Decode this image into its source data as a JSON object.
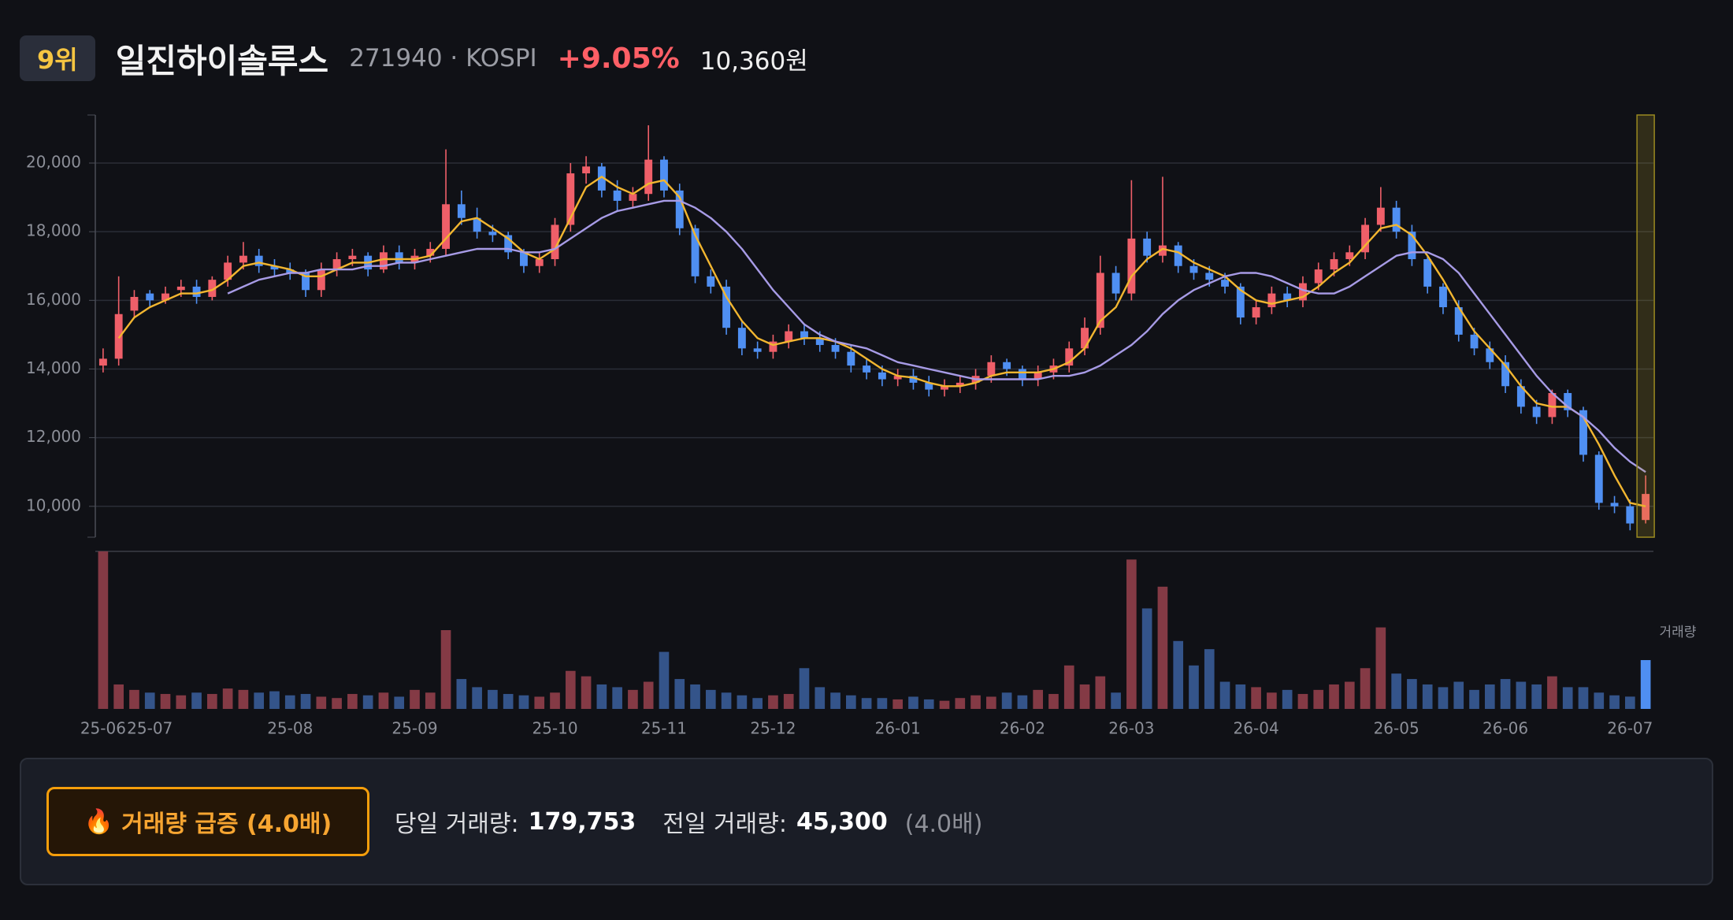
{
  "header": {
    "rank": "9위",
    "name": "일진하이솔루스",
    "code": "271940 · KOSPI",
    "change": "+9.05%",
    "price": "10,360원"
  },
  "chart_data": {
    "type": "candlestick",
    "categories": [
      "25-06",
      null,
      null,
      "25-07",
      null,
      null,
      null,
      null,
      null,
      null,
      null,
      null,
      "25-08",
      null,
      null,
      null,
      null,
      null,
      null,
      null,
      "25-09",
      null,
      null,
      null,
      null,
      null,
      null,
      null,
      null,
      "25-10",
      null,
      null,
      null,
      null,
      null,
      null,
      "25-11",
      null,
      null,
      null,
      null,
      null,
      null,
      "25-12",
      null,
      null,
      null,
      null,
      null,
      null,
      null,
      "26-01",
      null,
      null,
      null,
      null,
      null,
      null,
      null,
      "26-02",
      null,
      null,
      null,
      null,
      null,
      null,
      "26-03",
      null,
      null,
      null,
      null,
      null,
      null,
      null,
      "26-04",
      null,
      null,
      null,
      null,
      null,
      null,
      null,
      null,
      "26-05",
      null,
      null,
      null,
      null,
      null,
      null,
      "26-06",
      null,
      null,
      null,
      null,
      null,
      null,
      null,
      "26-07",
      null
    ],
    "open": [
      14100,
      14300,
      15700,
      16200,
      16000,
      16300,
      16400,
      16100,
      16600,
      17100,
      17300,
      17000,
      16900,
      16800,
      16300,
      16900,
      17200,
      17300,
      16900,
      17400,
      17100,
      17300,
      17500,
      18800,
      18400,
      18000,
      17900,
      17400,
      17000,
      17200,
      18200,
      19700,
      19900,
      19200,
      18900,
      19100,
      20100,
      19200,
      18100,
      16700,
      16400,
      15200,
      14600,
      14500,
      14800,
      15100,
      14900,
      14700,
      14500,
      14100,
      13900,
      13700,
      13800,
      13600,
      13400,
      13500,
      13600,
      13800,
      14200,
      14000,
      13700,
      13900,
      14100,
      14600,
      15200,
      16800,
      16200,
      17800,
      17300,
      17600,
      17000,
      16800,
      16600,
      16400,
      15500,
      15800,
      16200,
      16000,
      16500,
      16900,
      17200,
      17400,
      18200,
      18700,
      18000,
      17200,
      16400,
      15800,
      15000,
      14600,
      14200,
      13500,
      12900,
      12600,
      13300,
      12800,
      11500,
      10100,
      10000,
      9600
    ],
    "high": [
      14600,
      16700,
      16300,
      16300,
      16400,
      16600,
      16600,
      16700,
      17300,
      17700,
      17500,
      17200,
      17100,
      16900,
      17100,
      17400,
      17500,
      17400,
      17600,
      17600,
      17500,
      17700,
      20400,
      19200,
      18700,
      18200,
      18000,
      17500,
      17400,
      18400,
      20000,
      20200,
      20000,
      19500,
      19300,
      21100,
      20200,
      19400,
      18200,
      16900,
      16600,
      15400,
      14800,
      15000,
      15300,
      15300,
      15100,
      14900,
      14700,
      14300,
      14100,
      14000,
      14000,
      13800,
      13700,
      13800,
      14000,
      14400,
      14300,
      14100,
      14100,
      14300,
      14800,
      15500,
      17300,
      17000,
      19500,
      18000,
      19600,
      17700,
      17200,
      17000,
      16800,
      16500,
      16000,
      16400,
      16400,
      16700,
      17100,
      17400,
      17600,
      18400,
      19300,
      18900,
      18200,
      17300,
      16500,
      16000,
      15200,
      14800,
      14400,
      13700,
      13100,
      13400,
      13400,
      12900,
      11600,
      10300,
      10200,
      10900
    ],
    "low": [
      13900,
      14100,
      15500,
      15800,
      15900,
      16100,
      15900,
      16000,
      16400,
      16900,
      16800,
      16700,
      16600,
      16100,
      16100,
      16700,
      17000,
      16700,
      16800,
      16900,
      16900,
      17100,
      17300,
      18200,
      17800,
      17700,
      17200,
      16800,
      16800,
      17000,
      18000,
      19400,
      19000,
      18600,
      18700,
      18900,
      19000,
      17900,
      16500,
      16200,
      15000,
      14400,
      14300,
      14300,
      14600,
      14700,
      14500,
      14300,
      13900,
      13700,
      13500,
      13500,
      13400,
      13200,
      13200,
      13300,
      13400,
      13600,
      13800,
      13500,
      13500,
      13700,
      13900,
      14400,
      15000,
      16000,
      16000,
      17100,
      17100,
      16800,
      16600,
      16400,
      16200,
      15300,
      15300,
      15600,
      15800,
      15800,
      16300,
      16700,
      17000,
      17200,
      18000,
      17800,
      17000,
      16200,
      15600,
      14800,
      14400,
      14000,
      13300,
      12700,
      12400,
      12400,
      12600,
      11300,
      9900,
      9800,
      9300,
      9500
    ],
    "close": [
      14300,
      15600,
      16100,
      16000,
      16200,
      16400,
      16100,
      16600,
      17100,
      17300,
      17000,
      16900,
      16800,
      16300,
      16900,
      17200,
      17300,
      16900,
      17400,
      17100,
      17300,
      17500,
      18800,
      18400,
      18000,
      17900,
      17400,
      17000,
      17200,
      18200,
      19700,
      19900,
      19200,
      18900,
      19100,
      20100,
      19200,
      18100,
      16700,
      16400,
      15200,
      14600,
      14500,
      14800,
      15100,
      14900,
      14700,
      14500,
      14100,
      13900,
      13700,
      13800,
      13600,
      13400,
      13500,
      13600,
      13800,
      14200,
      14000,
      13700,
      13900,
      14100,
      14600,
      15200,
      16800,
      16200,
      17800,
      17300,
      17600,
      17000,
      16800,
      16600,
      16400,
      15500,
      15800,
      16200,
      16000,
      16500,
      16900,
      17200,
      17400,
      18200,
      18700,
      18000,
      17200,
      16400,
      15800,
      15000,
      14600,
      14200,
      13500,
      12900,
      12600,
      13300,
      12800,
      11500,
      10100,
      10000,
      9500,
      10360
    ],
    "volume": [
      580000,
      90000,
      70000,
      60000,
      55000,
      50000,
      60000,
      55000,
      75000,
      70000,
      60000,
      65000,
      50000,
      55000,
      45000,
      40000,
      55000,
      50000,
      60000,
      45000,
      70000,
      60000,
      290000,
      110000,
      80000,
      70000,
      55000,
      50000,
      45000,
      60000,
      140000,
      120000,
      90000,
      80000,
      70000,
      100000,
      210000,
      110000,
      90000,
      70000,
      60000,
      50000,
      40000,
      50000,
      55000,
      150000,
      80000,
      60000,
      50000,
      40000,
      40000,
      35000,
      45000,
      35000,
      30000,
      40000,
      50000,
      45000,
      60000,
      50000,
      70000,
      55000,
      160000,
      90000,
      120000,
      60000,
      550000,
      370000,
      450000,
      250000,
      160000,
      220000,
      100000,
      90000,
      80000,
      60000,
      70000,
      55000,
      70000,
      90000,
      100000,
      150000,
      300000,
      130000,
      110000,
      90000,
      80000,
      100000,
      70000,
      90000,
      110000,
      100000,
      90000,
      120000,
      80000,
      80000,
      60000,
      50000,
      45300,
      179753
    ],
    "ma_lines": [
      {
        "color": "#f2b630",
        "values": [
          null,
          14900,
          15500,
          15800,
          16000,
          16200,
          16200,
          16300,
          16600,
          17000,
          17100,
          17000,
          16900,
          16700,
          16700,
          16900,
          17100,
          17100,
          17200,
          17200,
          17200,
          17300,
          17800,
          18300,
          18400,
          18100,
          17800,
          17400,
          17200,
          17500,
          18400,
          19300,
          19600,
          19300,
          19100,
          19400,
          19500,
          19000,
          17900,
          17000,
          16100,
          15400,
          14900,
          14700,
          14800,
          14900,
          14900,
          14800,
          14600,
          14300,
          14000,
          13800,
          13750,
          13600,
          13500,
          13500,
          13600,
          13800,
          13900,
          13900,
          13900,
          14000,
          14200,
          14600,
          15400,
          15800,
          16700,
          17200,
          17500,
          17400,
          17100,
          16900,
          16700,
          16300,
          16000,
          15900,
          16000,
          16100,
          16400,
          16800,
          17100,
          17600,
          18100,
          18200,
          17900,
          17300,
          16600,
          15800,
          15100,
          14600,
          14100,
          13500,
          13000,
          12900,
          12900,
          12600,
          11800,
          10900,
          10100,
          10000
        ]
      },
      {
        "color": "#a79be6",
        "values": [
          null,
          null,
          null,
          null,
          null,
          null,
          null,
          null,
          16200,
          16400,
          16600,
          16700,
          16800,
          16800,
          16900,
          16900,
          16900,
          17000,
          17000,
          17100,
          17100,
          17200,
          17300,
          17400,
          17500,
          17500,
          17500,
          17400,
          17400,
          17500,
          17800,
          18100,
          18400,
          18600,
          18700,
          18800,
          18900,
          18900,
          18700,
          18400,
          18000,
          17500,
          16900,
          16300,
          15800,
          15300,
          15000,
          14800,
          14700,
          14600,
          14400,
          14200,
          14100,
          14000,
          13900,
          13800,
          13700,
          13700,
          13700,
          13700,
          13700,
          13800,
          13800,
          13900,
          14100,
          14400,
          14700,
          15100,
          15600,
          16000,
          16300,
          16500,
          16700,
          16800,
          16800,
          16700,
          16500,
          16300,
          16200,
          16200,
          16400,
          16700,
          17000,
          17300,
          17400,
          17400,
          17200,
          16800,
          16200,
          15600,
          15000,
          14400,
          13800,
          13300,
          12900,
          12600,
          12200,
          11700,
          11300,
          11000
        ]
      }
    ],
    "up_color": "#ef5f69",
    "down_color": "#4f8ff2",
    "volume_up_color": "#843a45",
    "volume_down_color": "#34548a",
    "ylim": [
      9100,
      21400
    ],
    "yticks": [
      {
        "value": 10000,
        "label": "10,000"
      },
      {
        "value": 12000,
        "label": "12,000"
      },
      {
        "value": 14000,
        "label": "14,000"
      },
      {
        "value": 16000,
        "label": "16,000"
      },
      {
        "value": 18000,
        "label": "18,000"
      },
      {
        "value": 20000,
        "label": "20,000"
      }
    ],
    "grid": true,
    "volume_ylim": [
      0,
      580000
    ],
    "volume_label": "거래량"
  },
  "summary": {
    "icon": "🔥",
    "alert": "거래량 급증 (4.0배)",
    "today_label": "당일 거래량:",
    "today_value": "179,753",
    "prev_label": "전일 거래량:",
    "prev_value": "45,300",
    "ratio": "(4.0배)"
  }
}
